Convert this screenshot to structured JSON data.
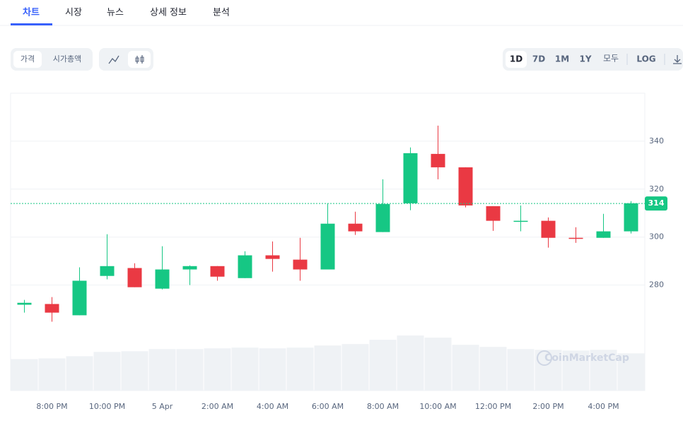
{
  "tabs": [
    "차트",
    "시장",
    "뉴스",
    "상세 정보",
    "분석"
  ],
  "toolbar": {
    "view": [
      "가격",
      "시가총액"
    ],
    "ranges": [
      "1D",
      "7D",
      "1M",
      "1Y",
      "모두"
    ],
    "scale": "LOG"
  },
  "chart_data": {
    "type": "candlestick",
    "categories": [
      null,
      "8:00 PM",
      null,
      "10:00 PM",
      null,
      "5 Apr",
      null,
      "2:00 AM",
      null,
      "4:00 AM",
      null,
      "6:00 AM",
      null,
      "8:00 AM",
      null,
      "10:00 AM",
      null,
      "12:00 PM",
      null,
      "2:00 PM",
      null,
      "4:00 PM",
      null
    ],
    "open": [
      271.8,
      272.1,
      267.4,
      283.8,
      287.1,
      278.5,
      286.5,
      287.9,
      282.9,
      292.4,
      290.6,
      286.5,
      305.6,
      302.1,
      314.1,
      334.7,
      329.1,
      312.9,
      306.5,
      306.8,
      299.7,
      299.7,
      302.4
    ],
    "high": [
      273.8,
      275.0,
      287.4,
      301.2,
      289.1,
      296.2,
      288.2,
      287.9,
      294.1,
      298.2,
      299.7,
      314.1,
      310.6,
      324.1,
      337.4,
      346.5,
      329.1,
      312.9,
      313.2,
      308.2,
      304.1,
      309.7,
      315.0
    ],
    "low": [
      268.5,
      264.7,
      267.4,
      282.4,
      279.1,
      278.2,
      280.0,
      281.8,
      282.9,
      285.6,
      281.8,
      286.5,
      300.9,
      302.1,
      311.2,
      324.1,
      312.4,
      302.6,
      302.4,
      295.6,
      297.6,
      299.7,
      301.5
    ],
    "close": [
      272.6,
      268.5,
      281.8,
      287.9,
      279.1,
      286.5,
      287.9,
      283.5,
      292.4,
      290.9,
      286.5,
      305.6,
      302.4,
      313.8,
      335.0,
      329.1,
      313.2,
      306.8,
      306.8,
      299.7,
      299.4,
      302.4,
      314.1
    ],
    "volume": [
      44,
      45,
      48,
      54,
      55,
      58,
      58,
      59,
      60,
      59,
      60,
      63,
      65,
      71,
      77,
      74,
      64,
      61,
      58,
      57,
      56,
      57,
      52
    ],
    "up_color": "#16c784",
    "down_color": "#ea3943",
    "volume_color": "#eff2f5",
    "ylim": [
      236,
      360
    ],
    "yticks": [
      280,
      300,
      320,
      340
    ],
    "grid": true,
    "last_price": 314,
    "watermark": "CoinMarketCap"
  }
}
